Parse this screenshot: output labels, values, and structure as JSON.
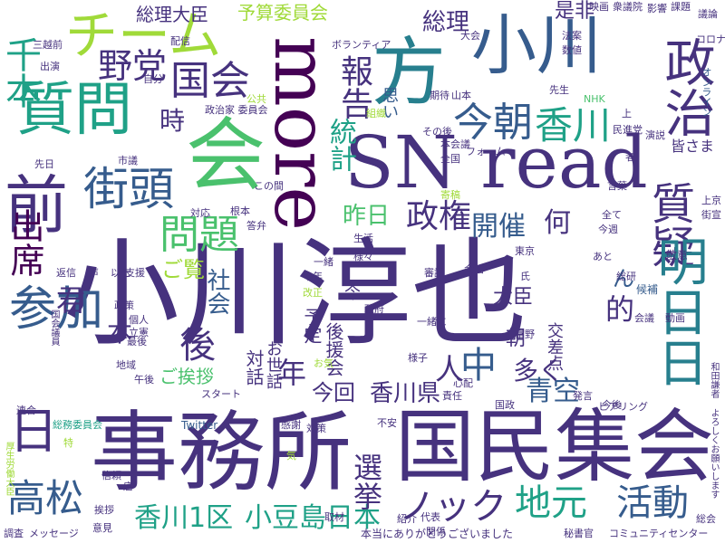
{
  "words": {
    "kojima_big": "小川淳也",
    "jimusho": "事務所",
    "kokumin": "国民集会",
    "sn_read": "SN read",
    "more": "more",
    "kai": "会",
    "kata": "方",
    "ogawa": "小川",
    "shitsumon": "質問",
    "mae": "前",
    "chiimu": "チーム",
    "seiji": "政治",
    "shitsugi": "質疑",
    "ashita": "明日日",
    "gaitou": "街頭",
    "sanka": "参加",
    "shusseki": "出席",
    "takamatsu": "高松",
    "nichi": "日",
    "hokoku": "報告",
    "toukei": "統計",
    "kesa": "今朝",
    "kagawa": "香川",
    "kokkai": "国会",
    "yatou": "野党",
    "sennin": "千本",
    "mondai": "問題",
    "seiken": "政権",
    "kaisai": "開催",
    "nani": "何",
    "katsudou": "活動",
    "jimoto": "地元",
    "nokku": "ノック",
    "aozora": "青空",
    "kagawa1": "香川1区",
    "shodoshima": "小豆島日本",
    "kagawaken": "香川県",
    "konkai": "今回",
    "senkyo": "選挙",
    "naka": "中",
    "hito": "人",
    "ooku": "多く",
    "nen": "年",
    "go": "後",
    "kimi": "君",
    "hon": "本",
    "shakai": "社会",
    "jiten": "時",
    "sakujitsu": "昨日",
    "goran": "ご覧",
    "goaisatsu": "ご挨拶",
    "souri": "総理",
    "souri_daijin": "総理大臣",
    "yosan": "予算委員会",
    "zehi": "是非",
    "omoi": "思い",
    "daijin": "大臣",
    "teki": "的",
    "n": "ん",
    "asa": "朝",
    "taiwa": "対話",
    "osewa": "お世話",
    "kouza": "後援会",
    "yotei": "予定",
    "ima": "今",
    "koutten": "交差点",
    "twitter": "Twitter",
    "seikatsu": "生活",
    "toukyou": "東京",
    "samazama": "様々",
    "ikkoku": "一緒",
    "kotoshi": "今年",
    "keii": "敬意",
    "kouho": "候補",
    "minna": "皆さま",
    "nhk": "NHK",
    "senesei": "先生",
    "kongo": "今後",
    "hanashi": "演説",
    "zenkoku": "全国",
    "honkaigi": "本会議",
    "forum": "フォーム",
    "sonogo": "その後",
    "shugiin": "衆議院",
    "eikyou": "影響",
    "kadai": "課題",
    "eiga": "映画",
    "giron": "議論",
    "korona": "コロナ",
    "online": "オンライン",
    "seisaku": "政策",
    "kojin": "個人",
    "ritsuken": "立憲",
    "saigo": "最後",
    "chiiki": "地域",
    "gogo": "午後",
    "kokkaigiin": "国会議員",
    "toku": "特",
    "henshin": "返信",
    "koe": "声",
    "ijou": "以上",
    "shien": "支援",
    "renkou": "連合",
    "sokumen": "総務委員会",
    "start": "スタート",
    "kansha": "感謝",
    "taisaku": "対策",
    "honto": "本当にありがとうございました",
    "community": "コミュニティセンター",
    "hishokan": "秘書官",
    "sougou": "総会",
    "messeeji": "メッセージ",
    "chousa": "調査",
    "iken": "意見",
    "daihyou": "代表",
    "shoukai": "紹介",
    "kankei": "関係",
    "shuzai": "取材",
    "aisatsu2": "挨拶",
    "mise": "店",
    "shinrai": "信頼",
    "isshoni": "一緒に",
    "kaigi": "会議",
    "douga": "動画",
    "seifu": "政府",
    "sekinin": "責任",
    "hatsugen": "発言",
    "kokusei": "国政",
    "shinsa": "審議",
    "hiaringu": "ヒアリング",
    "shinpai": "心配",
    "fuan": "不安",
    "hata": "寄稿",
    "kiroku": "組織",
    "honkaigi2": "本会議",
    "kaisei": "改正",
    "ookagi": "お気",
    "yousu": "様子",
    "kenshin": "厚生労働大臣",
    "wada": "和田謙者 よろしくお願いします",
    "bokensha": "ボランティア",
    "koukyou": "公共",
    "hoan": "法案",
    "suuchi": "数値",
    "daikai": "大会",
    "sanjo": "三越前",
    "haishin": "配信",
    "shuen": "出演",
    "jibun": "自分",
    "seijika": "政治家 委員会",
    "shigi": "市議",
    "sendjitsu": "先日",
    "konoaida": "この間",
    "taiou": "対応",
    "konpon": "根本",
    "touben": "答弁",
    "kotoba": "言葉",
    "subete": "全て",
    "konshuu": "今週",
    "gaiji": "街宣",
    "ue": "上",
    "uekyou": "上京",
    "minshin": "民進党",
    "kaikan": "会館",
    "kitai": "期待",
    "yamamoto": "山本",
    "shikou": "思考",
    "tomiya": "富野",
    "aato": "あと",
    "shi": "氏",
    "ki": "気",
    "souken": "総研",
    "mono": "者",
    "kaiwa": "会話"
  },
  "palette": {
    "dark_purple": "#440154",
    "indigo": "#46327e",
    "blue": "#365c8d",
    "teal": "#277f8e",
    "green_teal": "#1fa187",
    "green": "#4ac16d",
    "lime": "#a0da39",
    "yellow": "#fde725"
  }
}
